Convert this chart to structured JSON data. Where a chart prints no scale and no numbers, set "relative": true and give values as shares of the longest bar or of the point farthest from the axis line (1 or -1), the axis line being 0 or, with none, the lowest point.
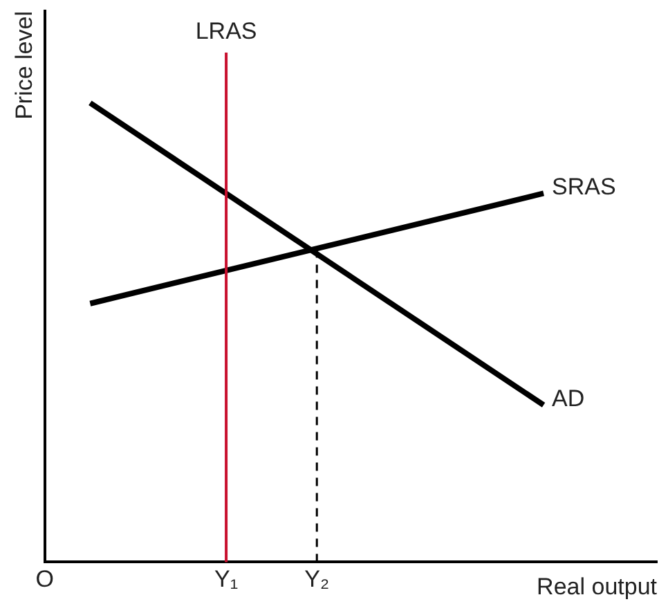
{
  "chart_data": {
    "type": "line",
    "relative": true,
    "xlabel": "Real output",
    "ylabel": "Price level",
    "categories": [
      "O",
      null,
      null,
      null,
      null,
      null,
      null,
      null,
      "Y₁",
      null,
      null,
      null,
      "Y₂",
      null,
      null,
      null,
      null,
      null,
      null,
      null,
      null,
      null,
      null,
      null,
      null,
      null,
      null,
      null
    ],
    "grid": false,
    "legend": false,
    "marker": "none",
    "series": [
      {
        "name": "AD",
        "color": "#000000",
        "values": [
          null,
          null,
          1,
          null,
          null,
          null,
          null,
          null,
          null,
          null,
          null,
          null,
          null,
          null,
          null,
          null,
          null,
          null,
          null,
          null,
          null,
          null,
          0.342,
          null,
          null,
          null,
          null,
          null
        ]
      },
      {
        "name": "SRAS",
        "color": "#000000",
        "values": [
          null,
          null,
          0.563,
          null,
          null,
          null,
          null,
          null,
          null,
          null,
          null,
          null,
          null,
          null,
          null,
          null,
          null,
          null,
          null,
          null,
          null,
          null,
          0.803,
          null,
          null,
          null,
          null,
          null
        ]
      }
    ],
    "ref_lines": [
      {
        "axis": "x",
        "value": "Y₁",
        "label": "LRAS",
        "color": "#c8102e",
        "line_style": "solid"
      },
      {
        "axis": "x",
        "value": "Y₂",
        "color": "#000000",
        "line_style": "dashed"
      }
    ]
  }
}
